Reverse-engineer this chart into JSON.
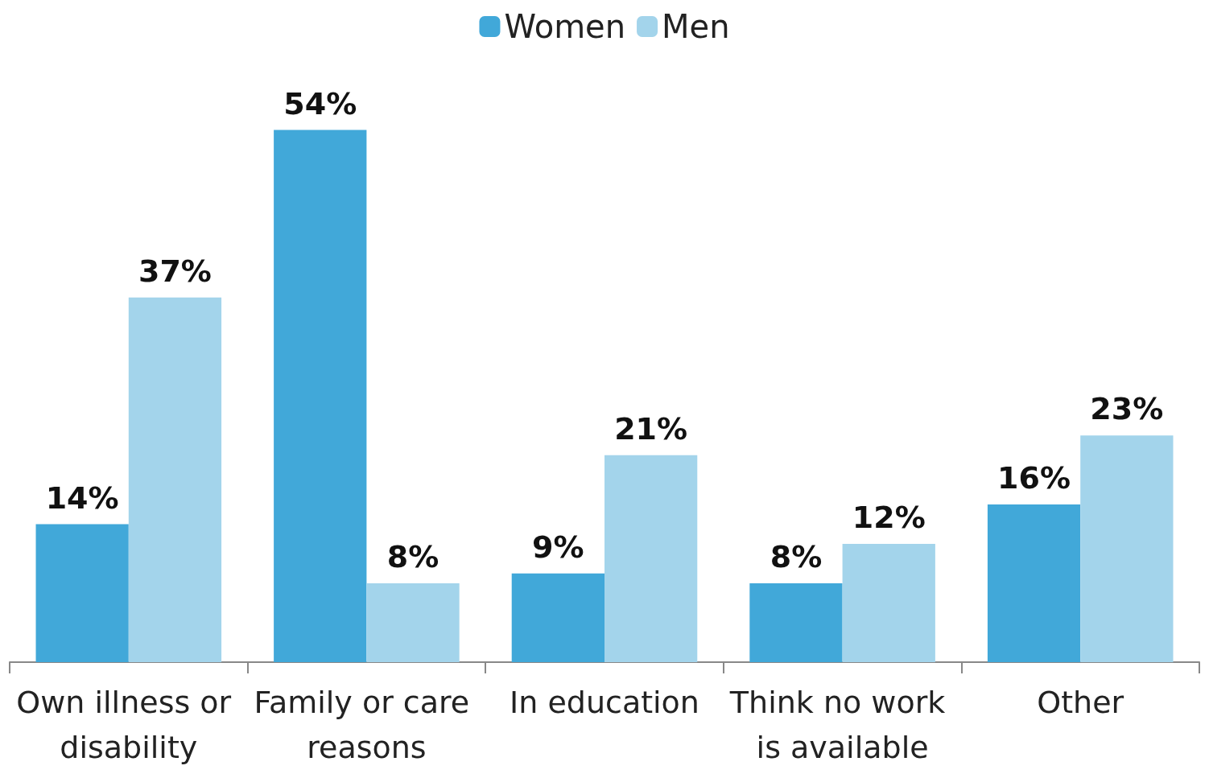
{
  "chart_data": {
    "type": "bar",
    "categories": [
      "Own illness or disability",
      "Family or care reasons",
      "In education",
      "Think no work is available",
      "Other"
    ],
    "series": [
      {
        "name": "Women",
        "color": "#41a8d9",
        "values": [
          14,
          54,
          9,
          8,
          16
        ],
        "value_labels": [
          "14%",
          "54%",
          "9%",
          "8%",
          "16%"
        ]
      },
      {
        "name": "Men",
        "color": "#a3d4eb",
        "values": [
          37,
          8,
          21,
          12,
          23
        ],
        "value_labels": [
          "37%",
          "8%",
          "21%",
          "12%",
          "23%"
        ]
      }
    ],
    "legend": "top",
    "grid": false
  }
}
